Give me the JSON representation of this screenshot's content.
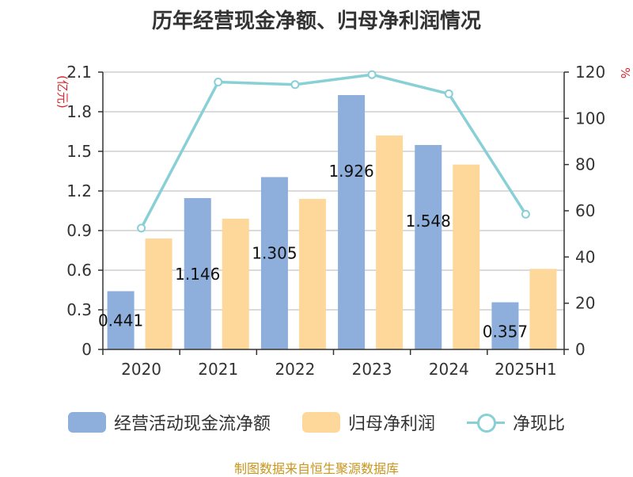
{
  "chart_data": {
    "type": "bar",
    "title": "历年经营现金净额、归母净利润情况",
    "categories": [
      "2020",
      "2021",
      "2022",
      "2023",
      "2024",
      "2025H1"
    ],
    "left_axis": {
      "unit": "(亿元)",
      "ylim": [
        0,
        2.1
      ],
      "ticks": [
        "0",
        "0.3",
        "0.6",
        "0.9",
        "1.2",
        "1.5",
        "1.8",
        "2.1"
      ]
    },
    "right_axis": {
      "unit": "%",
      "ylim": [
        0,
        120
      ],
      "ticks": [
        "0",
        "20",
        "40",
        "60",
        "80",
        "100",
        "120"
      ]
    },
    "series": [
      {
        "name": "经营活动现金流净额",
        "type": "bar",
        "axis": "left",
        "color": "#8eaedb",
        "values": [
          0.441,
          1.146,
          1.305,
          1.926,
          1.548,
          0.357
        ],
        "labels": [
          "0.441",
          "1.146",
          "1.305",
          "1.926",
          "1.548",
          "0.357"
        ]
      },
      {
        "name": "归母净利润",
        "type": "bar",
        "axis": "left",
        "color": "#fdd89a",
        "values": [
          0.84,
          0.99,
          1.14,
          1.62,
          1.4,
          0.61
        ]
      },
      {
        "name": "净现比",
        "type": "line",
        "axis": "right",
        "color": "#88d0d6",
        "values": [
          52.5,
          115.7,
          114.6,
          118.9,
          110.6,
          58.5
        ]
      }
    ],
    "grid": true,
    "legend": "bottom"
  },
  "source": "制图数据来自恒生聚源数据库"
}
